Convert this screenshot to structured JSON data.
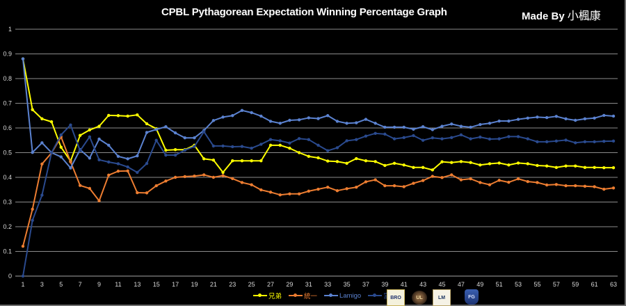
{
  "header": {
    "title": "CPBL Pythagorean Expectation Winning Percentage Graph",
    "credit_prefix": "Made By",
    "credit_name": "小楓康"
  },
  "logos": [
    {
      "team": "兄弟",
      "icon": "brothers-elephant-logo"
    },
    {
      "team": "統一",
      "icon": "uni-lions-logo"
    },
    {
      "team": "Lamigo",
      "icon": "lamigo-monkeys-logo"
    },
    {
      "team": "富邦",
      "icon": "fubon-guardians-logo"
    }
  ],
  "chart_data": {
    "type": "line",
    "title": "CPBL Pythagorean Expectation Winning Percentage Graph",
    "xlabel": "",
    "ylabel": "",
    "ylim": [
      0,
      1
    ],
    "yticks": [
      "0",
      "0.1",
      "0.2",
      "0.3",
      "0.4",
      "0.5",
      "0.6",
      "0.7",
      "0.8",
      "0.9",
      "1"
    ],
    "xlim": [
      1,
      63
    ],
    "xticks": [
      "1",
      "3",
      "5",
      "7",
      "9",
      "11",
      "13",
      "15",
      "17",
      "19",
      "21",
      "23",
      "25",
      "27",
      "29",
      "31",
      "33",
      "35",
      "37",
      "39",
      "41",
      "43",
      "45",
      "47",
      "49",
      "51",
      "53",
      "55",
      "57",
      "59",
      "61",
      "63"
    ],
    "grid": true,
    "legend_position": "bottom",
    "x": [
      1,
      2,
      3,
      4,
      5,
      6,
      7,
      8,
      9,
      10,
      11,
      12,
      13,
      14,
      15,
      16,
      17,
      18,
      19,
      20,
      21,
      22,
      23,
      24,
      25,
      26,
      27,
      28,
      29,
      30,
      31,
      32,
      33,
      34,
      35,
      36,
      37,
      38,
      39,
      40,
      41,
      42,
      43,
      44,
      45,
      46,
      47,
      48,
      49,
      50,
      51,
      52,
      53,
      54,
      55,
      56,
      57,
      58,
      59,
      60,
      61,
      62,
      63
    ],
    "series": [
      {
        "name": "兄弟",
        "color": "#ffff00",
        "values": [
          0.88,
          0.674,
          0.637,
          0.625,
          0.522,
          0.466,
          0.57,
          0.592,
          0.607,
          0.651,
          0.65,
          0.648,
          0.653,
          0.617,
          0.597,
          0.51,
          0.512,
          0.512,
          0.53,
          0.475,
          0.47,
          0.42,
          0.467,
          0.467,
          0.467,
          0.467,
          0.53,
          0.53,
          0.518,
          0.5,
          0.485,
          0.479,
          0.466,
          0.464,
          0.457,
          0.476,
          0.467,
          0.464,
          0.448,
          0.457,
          0.45,
          0.44,
          0.44,
          0.43,
          0.463,
          0.46,
          0.464,
          0.46,
          0.45,
          0.455,
          0.458,
          0.45,
          0.458,
          0.455,
          0.448,
          0.446,
          0.44,
          0.446,
          0.446,
          0.44,
          0.44,
          0.439,
          0.439
        ]
      },
      {
        "name": "統一",
        "color": "#ed7d31",
        "values": [
          0.121,
          0.271,
          0.454,
          0.499,
          0.564,
          0.463,
          0.367,
          0.355,
          0.305,
          0.409,
          0.425,
          0.426,
          0.338,
          0.337,
          0.366,
          0.385,
          0.4,
          0.403,
          0.405,
          0.41,
          0.4,
          0.407,
          0.395,
          0.379,
          0.37,
          0.349,
          0.34,
          0.329,
          0.333,
          0.333,
          0.344,
          0.352,
          0.36,
          0.346,
          0.354,
          0.36,
          0.382,
          0.39,
          0.366,
          0.366,
          0.362,
          0.376,
          0.387,
          0.404,
          0.399,
          0.41,
          0.39,
          0.394,
          0.379,
          0.37,
          0.388,
          0.38,
          0.394,
          0.383,
          0.379,
          0.369,
          0.371,
          0.366,
          0.366,
          0.364,
          0.362,
          0.352,
          0.357
        ]
      },
      {
        "name": "Lamigo",
        "color": "#5b82d0",
        "values": [
          0.88,
          0.501,
          0.54,
          0.5,
          0.483,
          0.438,
          0.512,
          0.478,
          0.555,
          0.53,
          0.485,
          0.475,
          0.487,
          0.582,
          0.594,
          0.605,
          0.58,
          0.56,
          0.56,
          0.59,
          0.63,
          0.644,
          0.65,
          0.671,
          0.662,
          0.648,
          0.627,
          0.619,
          0.631,
          0.633,
          0.641,
          0.638,
          0.65,
          0.627,
          0.619,
          0.621,
          0.635,
          0.619,
          0.603,
          0.603,
          0.603,
          0.595,
          0.605,
          0.593,
          0.607,
          0.616,
          0.607,
          0.603,
          0.614,
          0.619,
          0.628,
          0.628,
          0.635,
          0.64,
          0.644,
          0.642,
          0.647,
          0.637,
          0.631,
          0.637,
          0.64,
          0.651,
          0.648
        ]
      },
      {
        "name": "富邦",
        "color": "#2a4a8e",
        "values": [
          0.0,
          0.226,
          0.328,
          0.5,
          0.572,
          0.612,
          0.508,
          0.564,
          0.471,
          0.462,
          0.455,
          0.442,
          0.42,
          0.456,
          0.55,
          0.49,
          0.49,
          0.51,
          0.525,
          0.585,
          0.527,
          0.527,
          0.524,
          0.525,
          0.518,
          0.534,
          0.553,
          0.548,
          0.539,
          0.557,
          0.553,
          0.53,
          0.508,
          0.52,
          0.548,
          0.553,
          0.567,
          0.578,
          0.575,
          0.556,
          0.561,
          0.569,
          0.55,
          0.56,
          0.556,
          0.561,
          0.572,
          0.556,
          0.563,
          0.555,
          0.556,
          0.565,
          0.565,
          0.556,
          0.544,
          0.544,
          0.547,
          0.551,
          0.54,
          0.544,
          0.544,
          0.546,
          0.547
        ]
      }
    ]
  }
}
